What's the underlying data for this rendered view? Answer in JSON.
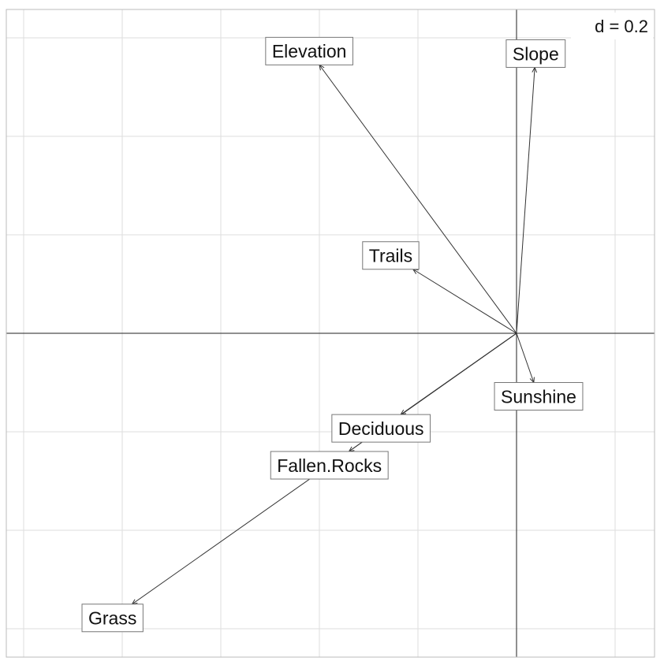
{
  "chart_data": {
    "type": "scatter",
    "subtype": "correlation-circle-arrows",
    "title": "",
    "xlabel": "",
    "ylabel": "",
    "grid_spacing_label": "d = 0.2",
    "grid_spacing": 0.2,
    "xlim": [
      -1.03,
      0.28
    ],
    "ylim": [
      -0.66,
      0.66
    ],
    "grid": true,
    "origin_axes": true,
    "variables": [
      {
        "name": "Elevation",
        "x": -0.4,
        "y": 0.545
      },
      {
        "name": "Slope",
        "x": 0.037,
        "y": 0.54
      },
      {
        "name": "Trails",
        "x": -0.21,
        "y": 0.13
      },
      {
        "name": "Sunshine",
        "x": 0.035,
        "y": -0.1
      },
      {
        "name": "Deciduous",
        "x": -0.235,
        "y": -0.165
      },
      {
        "name": "Fallen.Rocks",
        "x": -0.34,
        "y": -0.24
      },
      {
        "name": "Grass",
        "x": -0.78,
        "y": -0.55
      }
    ]
  }
}
